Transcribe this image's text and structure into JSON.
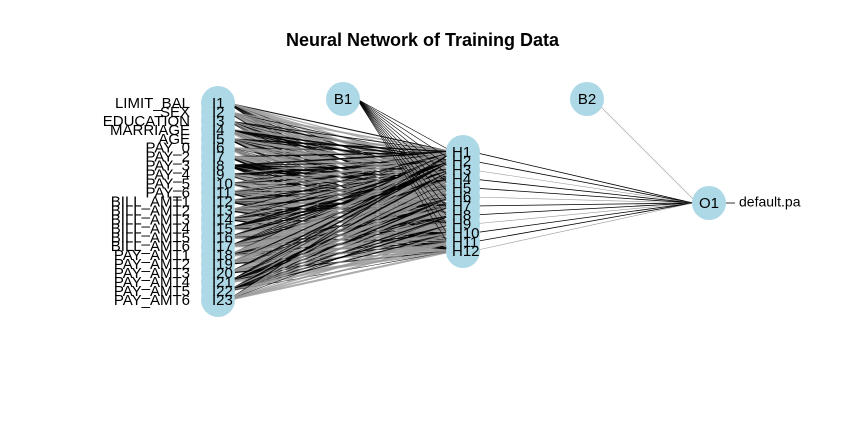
{
  "title": "Neural Network of Training Data",
  "colors": {
    "node_fill": "#add8e6",
    "edge_dark": "#000000",
    "edge_light": "#999999",
    "bias_edge": "#aaaaaa",
    "text": "#000000"
  },
  "input_nodes": [
    {
      "id": "I1",
      "feature": "LIMIT_BAL"
    },
    {
      "id": "I2",
      "feature": "SEX"
    },
    {
      "id": "I3",
      "feature": "EDUCATION"
    },
    {
      "id": "I4",
      "feature": "MARRIAGE"
    },
    {
      "id": "I5",
      "feature": "AGE"
    },
    {
      "id": "I6",
      "feature": "PAY_0"
    },
    {
      "id": "I7",
      "feature": "PAY_2"
    },
    {
      "id": "I8",
      "feature": "PAY_3"
    },
    {
      "id": "I9",
      "feature": "PAY_4"
    },
    {
      "id": "I10",
      "feature": "PAY_5"
    },
    {
      "id": "I11",
      "feature": "PAY_6"
    },
    {
      "id": "I12",
      "feature": "BILL_AMT1"
    },
    {
      "id": "I13",
      "feature": "BILL_AMT2"
    },
    {
      "id": "I14",
      "feature": "BILL_AMT3"
    },
    {
      "id": "I15",
      "feature": "BILL_AMT4"
    },
    {
      "id": "I16",
      "feature": "BILL_AMT5"
    },
    {
      "id": "I17",
      "feature": "BILL_AMT6"
    },
    {
      "id": "I18",
      "feature": "PAY_AMT1"
    },
    {
      "id": "I19",
      "feature": "PAY_AMT2"
    },
    {
      "id": "I20",
      "feature": "PAY_AMT3"
    },
    {
      "id": "I21",
      "feature": "PAY_AMT4"
    },
    {
      "id": "I22",
      "feature": "PAY_AMT5"
    },
    {
      "id": "I23",
      "feature": "PAY_AMT6"
    }
  ],
  "hidden_nodes": [
    "H1",
    "H2",
    "H3",
    "H4",
    "H5",
    "H6",
    "H7",
    "H8",
    "H9",
    "H10",
    "H11",
    "H12"
  ],
  "bias_nodes": [
    "B1",
    "B2"
  ],
  "output_node": {
    "id": "O1",
    "label": "default.pa"
  }
}
